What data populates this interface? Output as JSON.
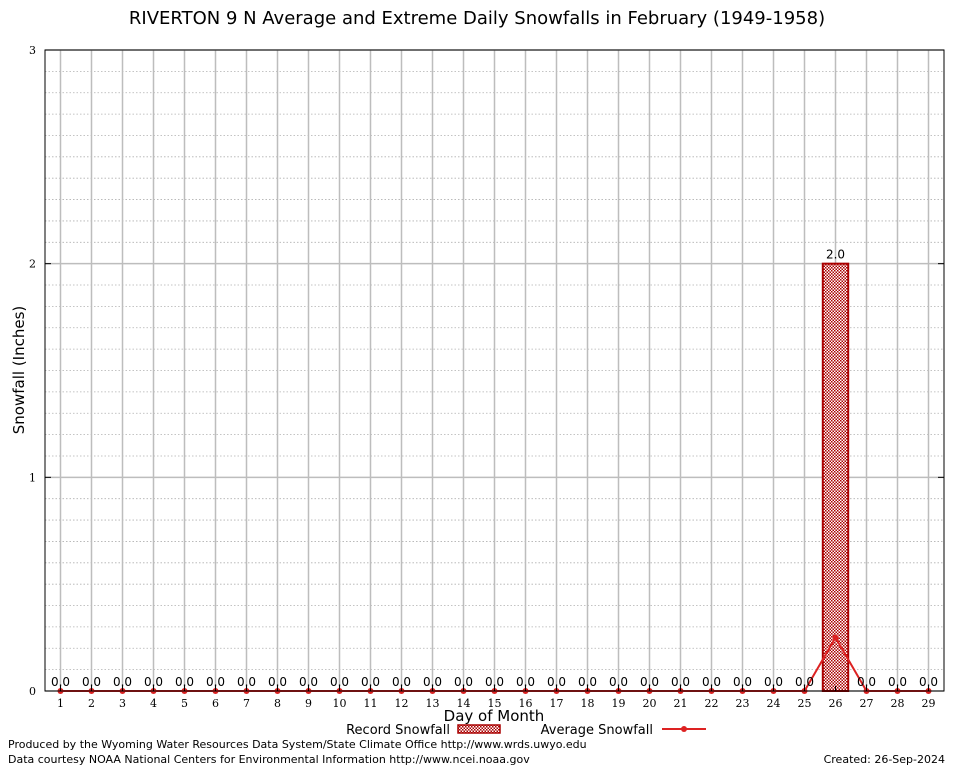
{
  "chart_data": {
    "type": "bar",
    "title": "RIVERTON 9 N Average and Extreme Daily Snowfalls in February (1949-1958)",
    "xlabel": "Day of Month",
    "ylabel": "Snowfall (Inches)",
    "ylim": [
      0,
      3
    ],
    "yticks": [
      "0",
      "1",
      "2",
      "3"
    ],
    "grid": true,
    "legend_position": "bottom-center",
    "categories": [
      "1",
      "2",
      "3",
      "4",
      "5",
      "6",
      "7",
      "8",
      "9",
      "10",
      "11",
      "12",
      "13",
      "14",
      "15",
      "16",
      "17",
      "18",
      "19",
      "20",
      "21",
      "22",
      "23",
      "24",
      "25",
      "26",
      "27",
      "28",
      "29"
    ],
    "series": [
      {
        "name": "Record Snowfall",
        "kind": "bar",
        "color": "#aa0000",
        "values": [
          0,
          0,
          0,
          0,
          0,
          0,
          0,
          0,
          0,
          0,
          0,
          0,
          0,
          0,
          0,
          0,
          0,
          0,
          0,
          0,
          0,
          0,
          0,
          0,
          0,
          2,
          0,
          0,
          0
        ],
        "labels": [
          "0.0",
          "0.0",
          "0.0",
          "0.0",
          "0.0",
          "0.0",
          "0.0",
          "0.0",
          "0.0",
          "0.0",
          "0.0",
          "0.0",
          "0.0",
          "0.0",
          "0.0",
          "0.0",
          "0.0",
          "0.0",
          "0.0",
          "0.0",
          "0.0",
          "0.0",
          "0.0",
          "0.0",
          "0.0",
          "2.0",
          "0.0",
          "0.0",
          "0.0"
        ]
      },
      {
        "name": "Average Snowfall",
        "kind": "line",
        "color": "#dd2222",
        "values": [
          0,
          0,
          0,
          0,
          0,
          0,
          0,
          0,
          0,
          0,
          0,
          0,
          0,
          0,
          0,
          0,
          0,
          0,
          0,
          0,
          0,
          0,
          0,
          0,
          0,
          0.25,
          0,
          0,
          0
        ]
      }
    ]
  },
  "footer": {
    "produced": "Produced by the Wyoming Water Resources Data System/State Climate Office http://www.wrds.uwyo.edu",
    "courtesy": "Data courtesy NOAA National Centers for Environmental Information http://www.ncei.noaa.gov",
    "created": "Created: 26-Sep-2024"
  }
}
